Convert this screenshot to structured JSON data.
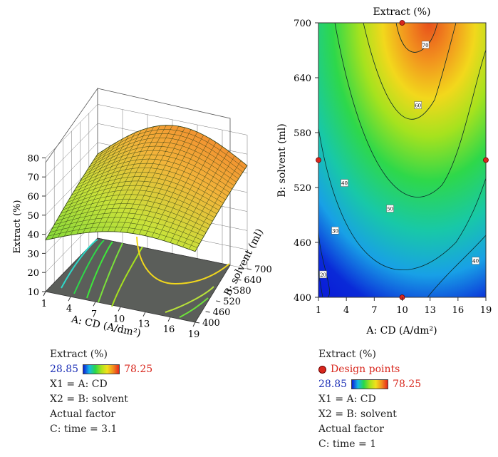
{
  "chart_data": [
    {
      "type": "surface3d",
      "title": "",
      "xlabel": "A: CD (A/dm²)",
      "ylabel": "B: solvent (ml)",
      "zlabel": "Extract (%)",
      "x_ticks": [
        "1",
        "4",
        "7",
        "10",
        "13",
        "16",
        "19"
      ],
      "y_ticks": [
        "400",
        "460",
        "520",
        "580",
        "640",
        "700"
      ],
      "z_ticks": [
        "10",
        "20",
        "30",
        "40",
        "50",
        "60",
        "70",
        "80"
      ],
      "xlim": [
        1,
        19
      ],
      "ylim": [
        400,
        700
      ],
      "zlim": [
        10,
        80
      ],
      "surface_corners": {
        "x1_y400": 37,
        "x19_y400": 47,
        "x1_y700": 58,
        "x19_y700": 69,
        "peak": 78
      }
    },
    {
      "type": "contour",
      "title": "Extract (%)",
      "xlabel": "A: CD (A/dm²)",
      "ylabel": "B: solvent (ml)",
      "x_ticks": [
        "1",
        "4",
        "7",
        "10",
        "13",
        "16",
        "19"
      ],
      "y_ticks": [
        "400",
        "460",
        "520",
        "580",
        "640",
        "700"
      ],
      "xlim": [
        1,
        19
      ],
      "ylim": [
        400,
        700
      ],
      "contour_levels": [
        20,
        30,
        40,
        50,
        60,
        70
      ],
      "contour_labels": [
        {
          "text": "20",
          "x": 1.5,
          "y": 425
        },
        {
          "text": "30",
          "x": 2.8,
          "y": 473
        },
        {
          "text": "40",
          "x": 3.8,
          "y": 525
        },
        {
          "text": "50",
          "x": 8.7,
          "y": 497
        },
        {
          "text": "60",
          "x": 11.7,
          "y": 610
        },
        {
          "text": "70",
          "x": 12.5,
          "y": 676
        },
        {
          "text": "40",
          "x": 17.9,
          "y": 440
        }
      ],
      "design_points": [
        {
          "x": 10,
          "y": 700
        },
        {
          "x": 1,
          "y": 550
        },
        {
          "x": 19,
          "y": 550
        },
        {
          "x": 10,
          "y": 400
        }
      ]
    }
  ],
  "legend_left": {
    "title": "Extract (%)",
    "min": "28.85",
    "max": "78.25",
    "x1": "X1 = A: CD",
    "x2": "X2 = B: solvent",
    "actual": "Actual factor",
    "time": "C: time = 3.1"
  },
  "legend_right": {
    "title": "Extract (%)",
    "design": "Design points",
    "min": "28.85",
    "max": "78.25",
    "x1": "X1 = A: CD",
    "x2": "X2 = B: solvent",
    "actual": "Actual factor",
    "time": "C: time = 1"
  },
  "colors": {
    "low": "#0a1fd8",
    "mid": "#28d84a",
    "high": "#e8281c",
    "floor": "#5b5e5a"
  }
}
